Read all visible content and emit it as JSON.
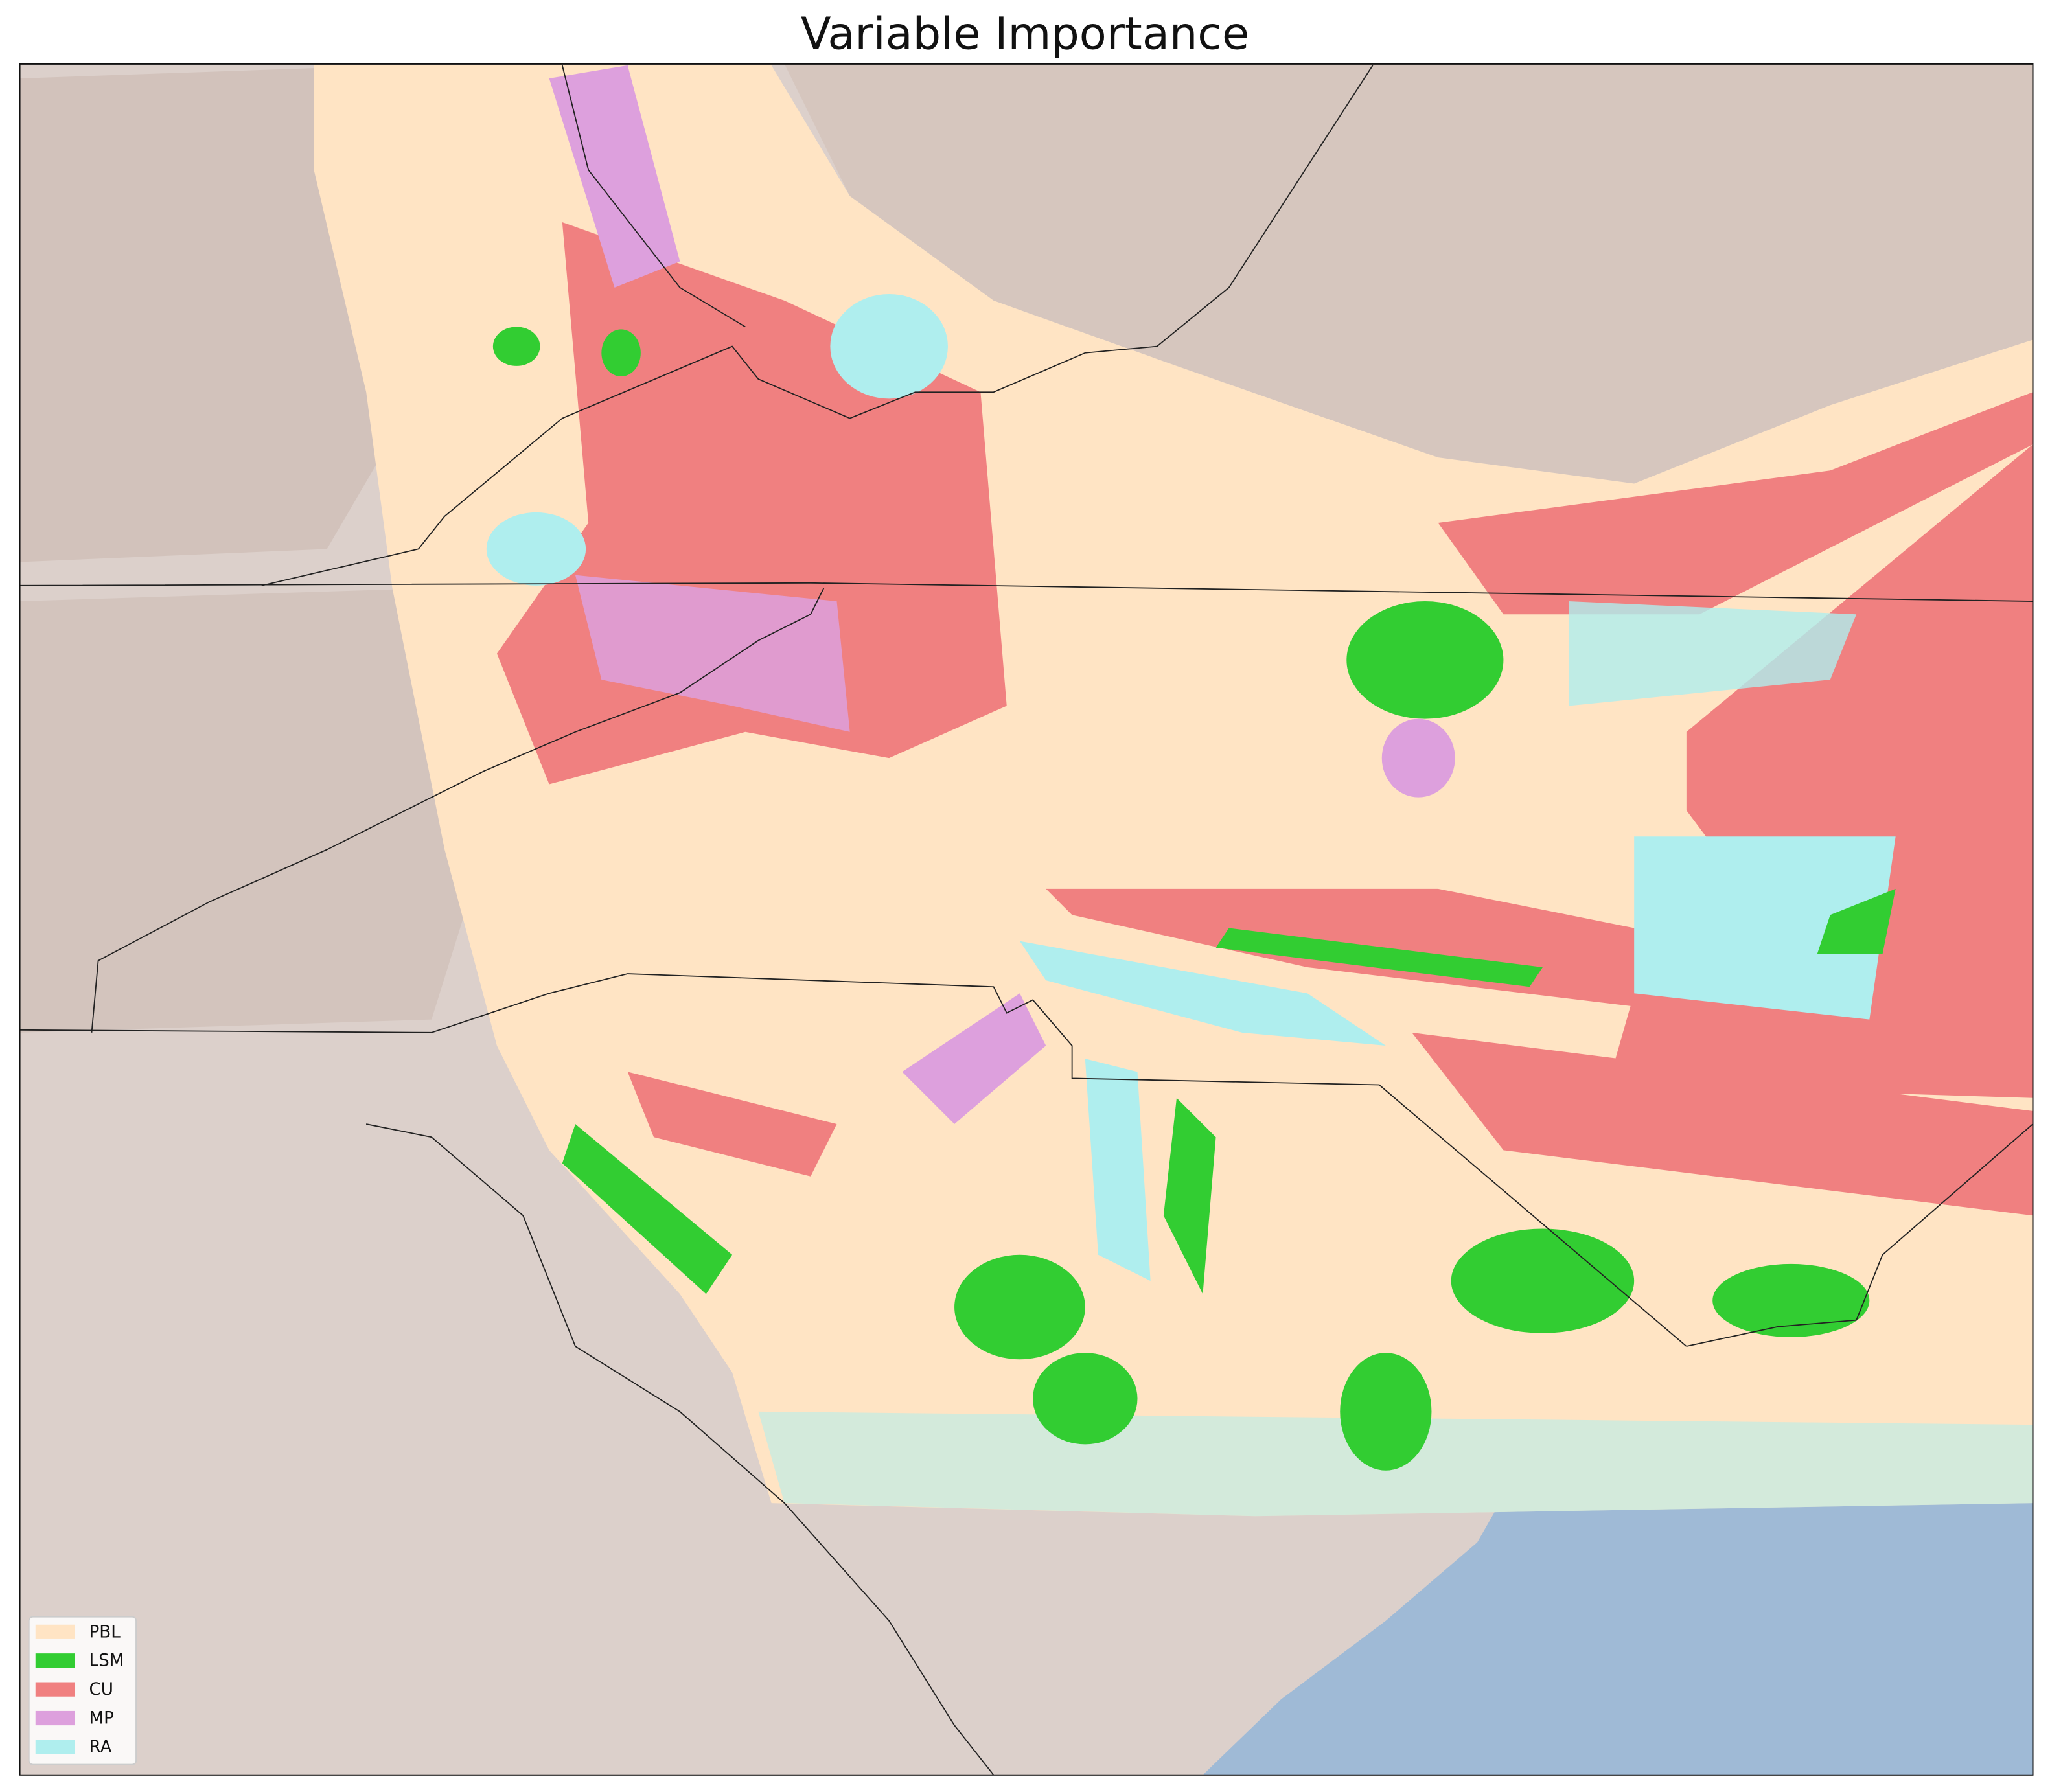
{
  "title": "Variable Importance",
  "legend": [
    {
      "label": "PBL",
      "color": "#ffe4c4"
    },
    {
      "label": "LSM",
      "color": "#32cd32"
    },
    {
      "label": "CU",
      "color": "#f08080"
    },
    {
      "label": "MP",
      "color": "#dda0dd"
    },
    {
      "label": "RA",
      "color": "#afeeee"
    }
  ]
}
